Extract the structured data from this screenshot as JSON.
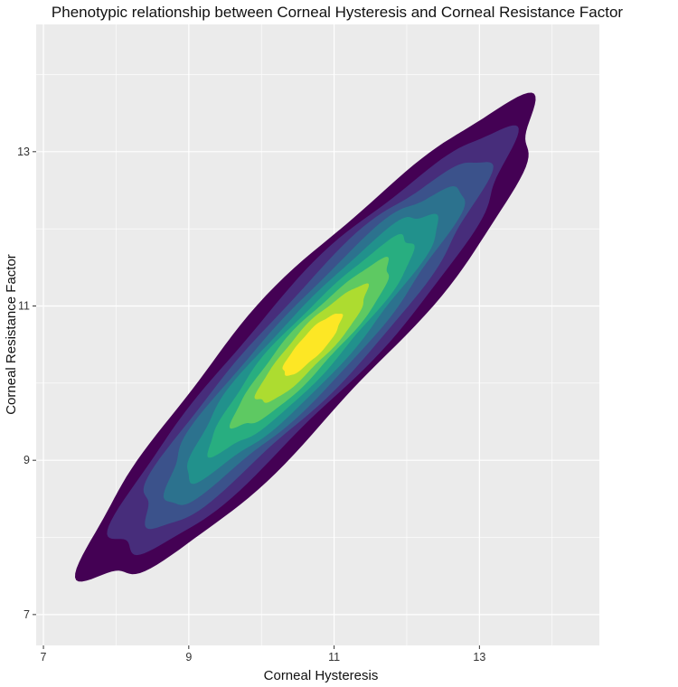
{
  "chart_data": {
    "type": "density_2d_filled",
    "title": "Phenotypic relationship between Corneal Hysteresis and Corneal Resistance Factor",
    "xlabel": "Corneal Hysteresis",
    "ylabel": "Corneal Resistance Factor",
    "xlim": [
      6.9,
      14.65
    ],
    "ylim": [
      6.6,
      14.65
    ],
    "x_ticks": [
      7,
      9,
      11,
      13
    ],
    "y_ticks": [
      7,
      9,
      11,
      13
    ],
    "grid": true,
    "background": "#ebebeb",
    "palette": "viridis",
    "density_center": {
      "x": 10.7,
      "y": 10.5
    },
    "orientation_deg": 45,
    "levels": [
      {
        "level": 1,
        "color": "#440154",
        "semi_major": 4.3,
        "semi_minor": 0.85
      },
      {
        "level": 2,
        "color": "#472d7b",
        "semi_major": 3.8,
        "semi_minor": 0.72
      },
      {
        "level": 3,
        "color": "#3b528b",
        "semi_major": 3.3,
        "semi_minor": 0.62
      },
      {
        "level": 4,
        "color": "#2c728e",
        "semi_major": 2.85,
        "semi_minor": 0.53
      },
      {
        "level": 5,
        "color": "#21918c",
        "semi_major": 2.4,
        "semi_minor": 0.45
      },
      {
        "level": 6,
        "color": "#28ae80",
        "semi_major": 1.95,
        "semi_minor": 0.37
      },
      {
        "level": 7,
        "color": "#5ec962",
        "semi_major": 1.5,
        "semi_minor": 0.3
      },
      {
        "level": 8,
        "color": "#addc30",
        "semi_major": 1.05,
        "semi_minor": 0.23
      },
      {
        "level": 9,
        "color": "#fde725",
        "semi_major": 0.55,
        "semi_minor": 0.15
      }
    ]
  }
}
